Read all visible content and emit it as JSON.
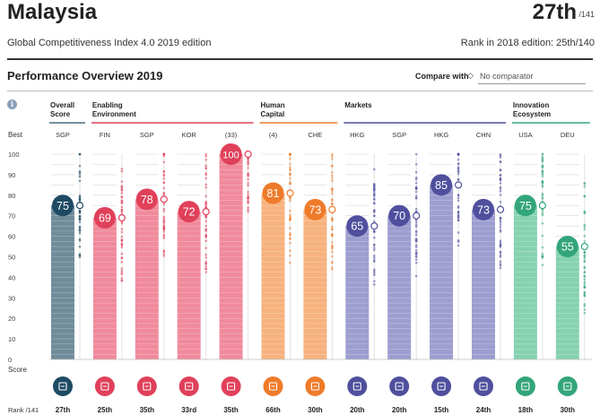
{
  "header": {
    "country": "Malaysia",
    "rank": "27th",
    "rank_total": "/141",
    "edition": "Global Competitiveness Index 4.0 2019 edition",
    "previous_rank": "Rank in 2018 edition: 25th/140"
  },
  "performance": {
    "title": "Performance Overview 2019",
    "compare_label": "Compare with",
    "compare_value": "No comparator",
    "info_glyph": "i"
  },
  "chart_data": {
    "type": "bar",
    "title": "Performance Overview 2019",
    "ylabel": "Score",
    "ylim": [
      0,
      100
    ],
    "yticks": [
      0,
      10,
      20,
      30,
      40,
      50,
      60,
      70,
      80,
      90,
      100
    ],
    "row_labels": {
      "best": "Best",
      "score": "Score",
      "rank": "Rank /141"
    },
    "groups": [
      {
        "name": "Overall Score",
        "name_lines": [
          "Overall",
          "Score"
        ],
        "color": "#4a6b7d",
        "start": 0,
        "end": 0
      },
      {
        "name": "Enabling Environment",
        "name_lines": [
          "Enabling",
          "Environment"
        ],
        "color": "#e0405a",
        "start": 1,
        "end": 4
      },
      {
        "name": "Human Capital",
        "name_lines": [
          "Human",
          "Capital"
        ],
        "color": "#ef7b2a",
        "start": 5,
        "end": 6
      },
      {
        "name": "Markets",
        "name_lines": [
          "Markets"
        ],
        "color": "#4f4f9e",
        "start": 7,
        "end": 10
      },
      {
        "name": "Innovation Ecosystem",
        "name_lines": [
          "Innovation",
          "Ecosystem"
        ],
        "color": "#33a57a",
        "start": 11,
        "end": 12
      }
    ],
    "pillars": [
      {
        "best": "SGP",
        "value": 75,
        "rank": "27th",
        "icon": "award-icon",
        "color": "#1e4a63",
        "bar_color": "#6f8c9a"
      },
      {
        "best": "FIN",
        "value": 69,
        "rank": "25th",
        "icon": "institutions-icon",
        "color": "#e0405a",
        "bar_color": "#f08a9c"
      },
      {
        "best": "SGP",
        "value": 78,
        "rank": "35th",
        "icon": "infrastructure-icon",
        "color": "#e0405a",
        "bar_color": "#f08a9c"
      },
      {
        "best": "KOR",
        "value": 72,
        "rank": "33rd",
        "icon": "ict-chip-icon",
        "color": "#e0405a",
        "bar_color": "#f08a9c"
      },
      {
        "best": "(33)",
        "value": 100,
        "rank": "35th",
        "icon": "percent-icon",
        "color": "#e0405a",
        "bar_color": "#f08a9c"
      },
      {
        "best": "(4)",
        "value": 81,
        "rank": "66th",
        "icon": "health-heart-icon",
        "color": "#ef7b2a",
        "bar_color": "#f6b27e"
      },
      {
        "best": "CHE",
        "value": 73,
        "rank": "30th",
        "icon": "skills-graduate-icon",
        "color": "#ef7b2a",
        "bar_color": "#f6b27e"
      },
      {
        "best": "HKG",
        "value": 65,
        "rank": "20th",
        "icon": "tag-icon",
        "color": "#4f4f9e",
        "bar_color": "#9d9dd0"
      },
      {
        "best": "SGP",
        "value": 70,
        "rank": "20th",
        "icon": "people-icon",
        "color": "#4f4f9e",
        "bar_color": "#9d9dd0"
      },
      {
        "best": "HKG",
        "value": 85,
        "rank": "15th",
        "icon": "card-icon",
        "color": "#4f4f9e",
        "bar_color": "#9d9dd0"
      },
      {
        "best": "CHN",
        "value": 73,
        "rank": "24th",
        "icon": "expand-icon",
        "color": "#4f4f9e",
        "bar_color": "#9d9dd0"
      },
      {
        "best": "USA",
        "value": 75,
        "rank": "18th",
        "icon": "business-doc-icon",
        "color": "#33a57a",
        "bar_color": "#86d2b0"
      },
      {
        "best": "DEU",
        "value": 55,
        "rank": "30th",
        "icon": "lightbulb-icon",
        "color": "#33a57a",
        "bar_color": "#86d2b0"
      }
    ]
  }
}
